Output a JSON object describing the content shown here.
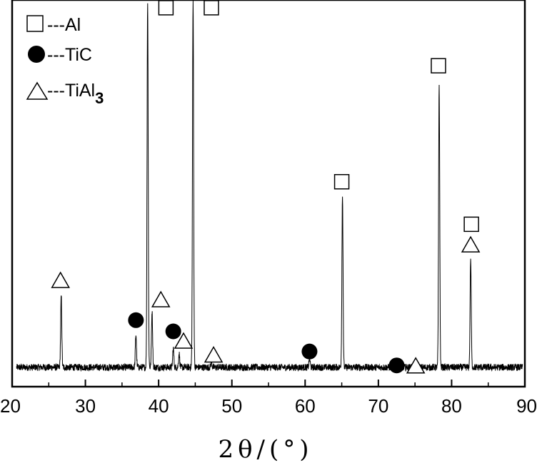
{
  "chart_data": {
    "type": "line",
    "title": "",
    "xlabel": "2θ/(°)",
    "ylabel": "",
    "xlim": [
      20,
      90
    ],
    "ylim": [
      0,
      100
    ],
    "x_ticks": [
      20,
      30,
      40,
      50,
      60,
      70,
      80,
      90
    ],
    "grid": false,
    "legend_position": "top-left",
    "legend": [
      {
        "marker": "square",
        "label": "---Al"
      },
      {
        "marker": "circle",
        "label": "---TiC"
      },
      {
        "marker": "triangle",
        "label": "---TiAl",
        "subscript": "3"
      }
    ],
    "series": [
      {
        "baseline": 5,
        "peaks": [
          {
            "x": 26.7,
            "y": 23.5
          },
          {
            "x": 36.9,
            "y": 13.5
          },
          {
            "x": 38.5,
            "y": 100
          },
          {
            "x": 39.1,
            "y": 19.5
          },
          {
            "x": 42.0,
            "y": 10
          },
          {
            "x": 42.8,
            "y": 8.5
          },
          {
            "x": 44.7,
            "y": 100
          },
          {
            "x": 47.2,
            "y": 6.5
          },
          {
            "x": 60.6,
            "y": 7.5
          },
          {
            "x": 65.1,
            "y": 49
          },
          {
            "x": 72.5,
            "y": 6
          },
          {
            "x": 78.3,
            "y": 78.5
          },
          {
            "x": 82.6,
            "y": 33
          }
        ]
      }
    ],
    "annotations": [
      {
        "marker": "square",
        "x": 41.0,
        "y": 98
      },
      {
        "marker": "square",
        "x": 47.2,
        "y": 98
      },
      {
        "marker": "square",
        "x": 78.2,
        "y": 83
      },
      {
        "marker": "square",
        "x": 65.0,
        "y": 53
      },
      {
        "marker": "square",
        "x": 82.7,
        "y": 42
      },
      {
        "marker": "triangle",
        "x": 26.6,
        "y": 27.5
      },
      {
        "marker": "triangle",
        "x": 40.3,
        "y": 22.5
      },
      {
        "marker": "triangle",
        "x": 43.4,
        "y": 11.8
      },
      {
        "marker": "triangle",
        "x": 47.5,
        "y": 8.2
      },
      {
        "marker": "triangle",
        "x": 82.6,
        "y": 36.7
      },
      {
        "marker": "triangle",
        "x": 75.1,
        "y": 5.4
      },
      {
        "marker": "circle",
        "x": 36.9,
        "y": 17.2
      },
      {
        "marker": "circle",
        "x": 42.0,
        "y": 14.3
      },
      {
        "marker": "circle",
        "x": 60.6,
        "y": 9.1
      },
      {
        "marker": "circle",
        "x": 72.5,
        "y": 5.5
      }
    ]
  }
}
